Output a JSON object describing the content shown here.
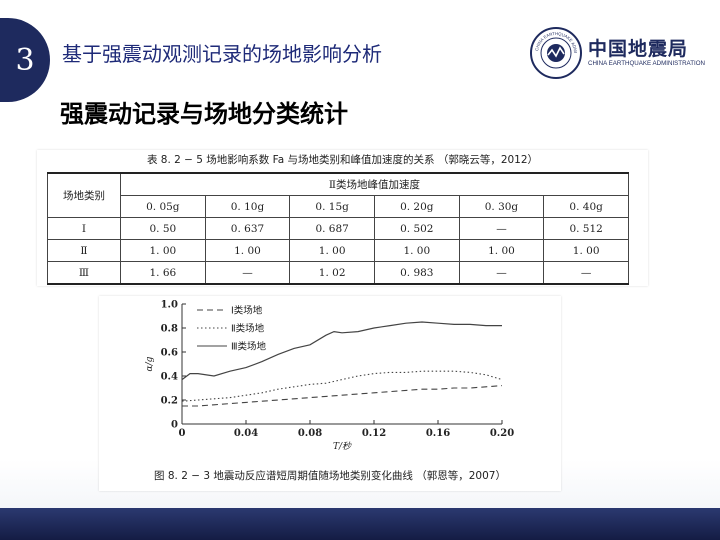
{
  "slide": {
    "number": "3",
    "title": "基于强震动观测记录的场地影响分析",
    "subtitle": "强震动记录与场地分类统计"
  },
  "logo": {
    "name_cn": "中国地震局",
    "name_en": "CHINA EARTHQUAKE ADMINISTRATION",
    "seal_text": "CHINA EARTHQUAKE ADMINISTRATION"
  },
  "table": {
    "caption": "表 8. 2 − 5    场地影响系数 Fa 与场地类别和峰值加速度的关系 （郭晓云等，2012）",
    "row_header": "场地类别",
    "group_header": "Ⅱ类场地峰值加速度",
    "columns": [
      "0. 05g",
      "0. 10g",
      "0. 15g",
      "0. 20g",
      "0. 30g",
      "0. 40g"
    ],
    "rows": [
      {
        "label": "Ⅰ",
        "cells": [
          "0. 50",
          "0. 637",
          "0. 687",
          "0. 502",
          "—",
          "0. 512"
        ]
      },
      {
        "label": "Ⅱ",
        "cells": [
          "1. 00",
          "1. 00",
          "1. 00",
          "1. 00",
          "1. 00",
          "1. 00"
        ]
      },
      {
        "label": "Ⅲ",
        "cells": [
          "1. 66",
          "—",
          "1. 02",
          "0. 983",
          "—",
          "—"
        ]
      }
    ]
  },
  "chart_data": {
    "type": "line",
    "caption": "图 8. 2 − 3    地震动反应谱短周期值随场地类别变化曲线 （郭恩等，2007）",
    "xlabel": "T/秒",
    "ylabel": "α/g",
    "xlim": [
      0,
      0.2
    ],
    "ylim": [
      0,
      1.0
    ],
    "xticks": [
      "0",
      "0.04",
      "0.08",
      "0.12",
      "0.16",
      "0.20"
    ],
    "yticks": [
      "0",
      "0.2",
      "0.4",
      "0.6",
      "0.8",
      "1.0"
    ],
    "grid": false,
    "legend_position": "top-left",
    "series": [
      {
        "name": "Ⅰ类场地",
        "style": "dashed",
        "x": [
          0,
          0.01,
          0.02,
          0.03,
          0.04,
          0.05,
          0.06,
          0.07,
          0.08,
          0.09,
          0.1,
          0.11,
          0.12,
          0.13,
          0.14,
          0.15,
          0.16,
          0.17,
          0.18,
          0.19,
          0.2
        ],
        "y": [
          0.15,
          0.15,
          0.16,
          0.17,
          0.18,
          0.19,
          0.2,
          0.21,
          0.22,
          0.23,
          0.24,
          0.25,
          0.26,
          0.27,
          0.28,
          0.29,
          0.29,
          0.3,
          0.3,
          0.31,
          0.32
        ]
      },
      {
        "name": "Ⅱ类场地",
        "style": "dotted",
        "x": [
          0,
          0.01,
          0.02,
          0.03,
          0.04,
          0.05,
          0.06,
          0.07,
          0.08,
          0.09,
          0.1,
          0.11,
          0.12,
          0.13,
          0.14,
          0.15,
          0.16,
          0.17,
          0.18,
          0.19,
          0.2
        ],
        "y": [
          0.19,
          0.2,
          0.21,
          0.22,
          0.24,
          0.26,
          0.29,
          0.31,
          0.33,
          0.34,
          0.37,
          0.4,
          0.42,
          0.43,
          0.43,
          0.44,
          0.44,
          0.44,
          0.43,
          0.41,
          0.37
        ]
      },
      {
        "name": "Ⅲ类场地",
        "style": "solid",
        "x": [
          0,
          0.005,
          0.01,
          0.02,
          0.03,
          0.04,
          0.05,
          0.06,
          0.07,
          0.08,
          0.09,
          0.095,
          0.1,
          0.11,
          0.12,
          0.13,
          0.14,
          0.15,
          0.16,
          0.17,
          0.18,
          0.19,
          0.2
        ],
        "y": [
          0.37,
          0.42,
          0.42,
          0.4,
          0.44,
          0.47,
          0.52,
          0.58,
          0.63,
          0.66,
          0.74,
          0.77,
          0.76,
          0.77,
          0.8,
          0.82,
          0.84,
          0.85,
          0.84,
          0.83,
          0.83,
          0.82,
          0.82
        ]
      }
    ]
  }
}
